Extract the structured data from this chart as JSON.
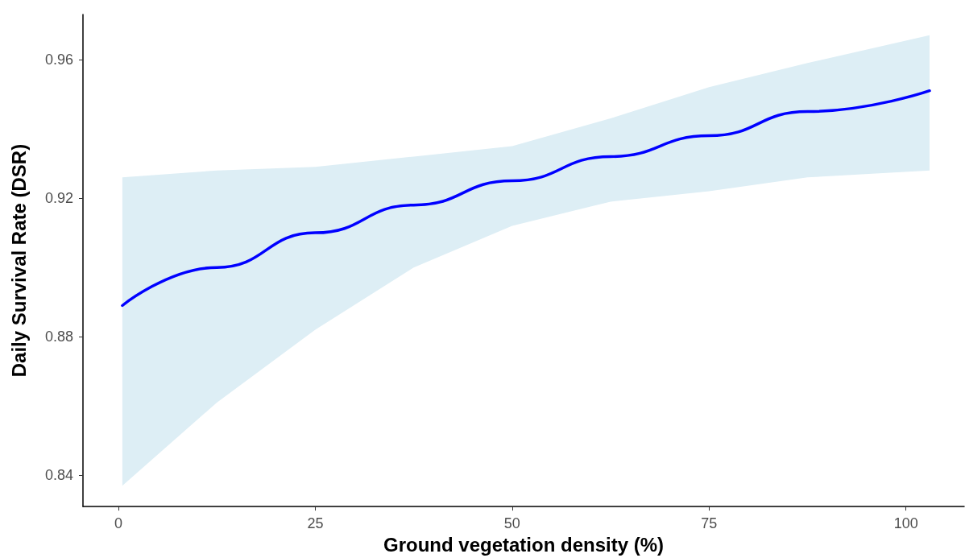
{
  "chart_data": {
    "type": "line",
    "xlabel": "Ground vegetation density (%)",
    "ylabel": "Daily Survival Rate (DSR)",
    "x": [
      0.5,
      12.5,
      25,
      37.5,
      50,
      62.5,
      75,
      87.5,
      103
    ],
    "series": [
      {
        "color": "#0000ff",
        "values": [
          0.889,
          0.9,
          0.91,
          0.918,
          0.925,
          0.932,
          0.938,
          0.945,
          0.951
        ],
        "lower": [
          0.837,
          0.861,
          0.882,
          0.9,
          0.912,
          0.919,
          0.922,
          0.926,
          0.928
        ],
        "upper": [
          0.926,
          0.928,
          0.929,
          0.932,
          0.935,
          0.943,
          0.952,
          0.959,
          0.967
        ]
      }
    ],
    "xlim": [
      -4.5,
      107.4
    ],
    "xticks": [
      0,
      25,
      50,
      75,
      100
    ],
    "ylim": [
      0.831,
      0.973
    ],
    "yticks": [
      0.84,
      0.88,
      0.92,
      0.96
    ],
    "grid": false,
    "marker": "none",
    "line_style": "solid"
  }
}
